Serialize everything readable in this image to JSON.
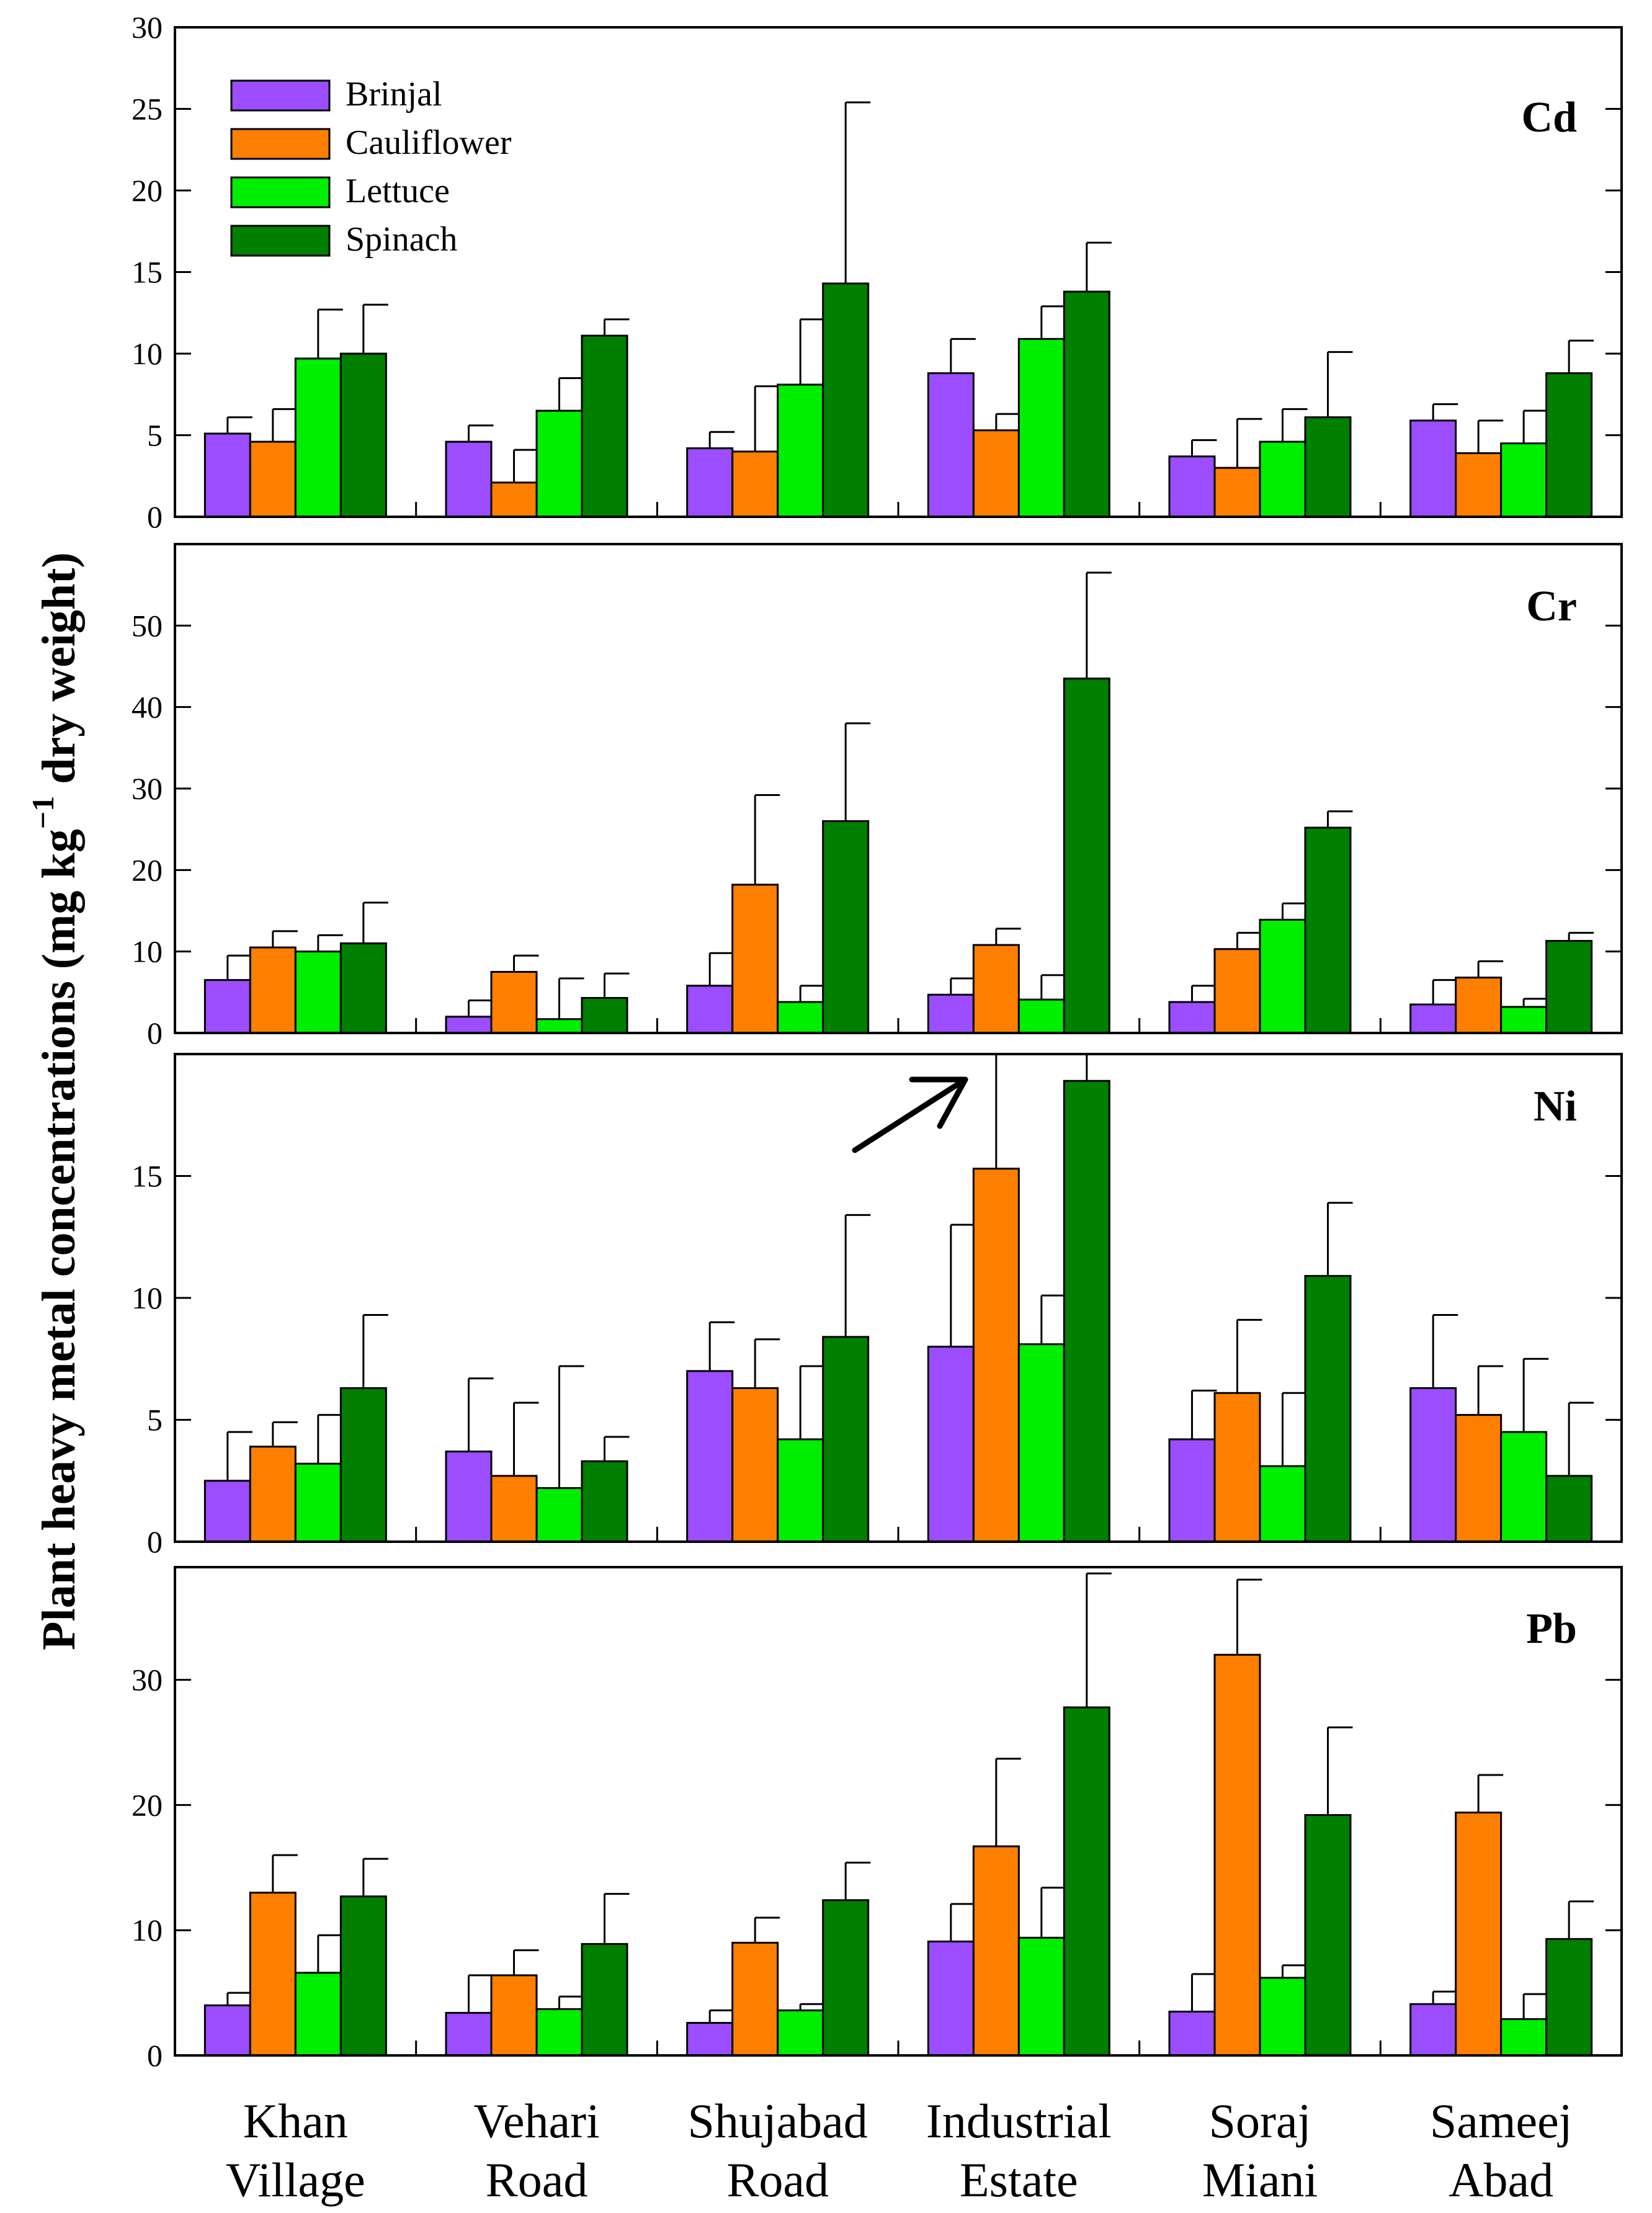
{
  "chart_data": {
    "type": "bar",
    "ylabel_parts": [
      "Plant heavy metal concentrations (mg kg",
      "−1",
      " dry weight)"
    ],
    "categories": [
      [
        "Khan",
        "Village"
      ],
      [
        "Vehari",
        "Road"
      ],
      [
        "Shujabad",
        "Road"
      ],
      [
        "Industrial",
        "Estate"
      ],
      [
        "Soraj",
        "Miani"
      ],
      [
        "Sameej",
        "Abad"
      ]
    ],
    "series_names": [
      "Brinjal",
      "Cauliflower",
      "Lettuce",
      "Spinach"
    ],
    "colors": [
      "#9b4dff",
      "#ff7f00",
      "#00ee00",
      "#007f00"
    ],
    "legend_position": "top-left",
    "annotation": "arrow pointing to truncated error bars in Ni panel (Industrial Estate)",
    "panels": [
      {
        "name": "Cd",
        "ylim": [
          0,
          30
        ],
        "yticks": [
          0,
          5,
          10,
          15,
          20,
          25,
          30
        ],
        "values": [
          [
            5.1,
            4.6,
            9.7,
            10.0
          ],
          [
            4.6,
            2.1,
            6.5,
            11.1
          ],
          [
            4.2,
            4.0,
            8.1,
            14.3
          ],
          [
            8.8,
            5.3,
            10.9,
            13.8
          ],
          [
            3.7,
            3.0,
            4.6,
            6.1
          ],
          [
            5.9,
            3.9,
            4.5,
            8.8
          ]
        ],
        "errors": [
          [
            1.0,
            2.0,
            3.0,
            3.0
          ],
          [
            1.0,
            2.0,
            2.0,
            1.0
          ],
          [
            1.0,
            4.0,
            4.0,
            11.1
          ],
          [
            2.1,
            1.0,
            2.0,
            3.0
          ],
          [
            1.0,
            3.0,
            2.0,
            4.0
          ],
          [
            1.0,
            2.0,
            2.0,
            2.0
          ]
        ]
      },
      {
        "name": "Cr",
        "ylim": [
          0,
          60
        ],
        "yticks": [
          0,
          10,
          20,
          30,
          40,
          50
        ],
        "values": [
          [
            6.5,
            10.5,
            10.0,
            11.0
          ],
          [
            2.0,
            7.5,
            1.7,
            4.3
          ],
          [
            5.8,
            18.2,
            3.8,
            26.0
          ],
          [
            4.7,
            10.8,
            4.1,
            43.5
          ],
          [
            3.8,
            10.3,
            13.9,
            25.2
          ],
          [
            3.5,
            6.8,
            3.2,
            11.3
          ]
        ],
        "errors": [
          [
            3.0,
            2.0,
            2.0,
            5.0
          ],
          [
            2.0,
            2.0,
            5.0,
            3.0
          ],
          [
            4.0,
            11.0,
            2.0,
            12.0
          ],
          [
            2.0,
            2.0,
            3.0,
            13.0
          ],
          [
            2.0,
            2.0,
            2.0,
            2.0
          ],
          [
            3.0,
            2.0,
            1.0,
            1.0
          ]
        ]
      },
      {
        "name": "Ni",
        "ylim": [
          0,
          20
        ],
        "yticks": [
          0,
          5,
          10,
          15
        ],
        "values": [
          [
            2.5,
            3.9,
            3.2,
            6.3
          ],
          [
            3.7,
            2.7,
            2.2,
            3.3
          ],
          [
            7.0,
            6.3,
            4.2,
            8.4
          ],
          [
            8.0,
            15.3,
            8.1,
            18.9
          ],
          [
            4.2,
            6.1,
            3.1,
            10.9
          ],
          [
            6.3,
            5.2,
            4.5,
            2.7
          ]
        ],
        "errors": [
          [
            2.0,
            1.0,
            2.0,
            3.0
          ],
          [
            3.0,
            3.0,
            5.0,
            1.0
          ],
          [
            2.0,
            2.0,
            3.0,
            5.0
          ],
          [
            5.0,
            4.7,
            2.0,
            1.1
          ],
          [
            2.0,
            3.0,
            3.0,
            3.0
          ],
          [
            3.0,
            2.0,
            3.0,
            3.0
          ]
        ]
      },
      {
        "name": "Pb",
        "ylim": [
          0,
          39
        ],
        "yticks": [
          0,
          10,
          20,
          30
        ],
        "values": [
          [
            4.0,
            13.0,
            6.6,
            12.7
          ],
          [
            3.4,
            6.4,
            3.7,
            8.9
          ],
          [
            2.6,
            9.0,
            3.6,
            12.4
          ],
          [
            9.1,
            16.7,
            9.4,
            27.8
          ],
          [
            3.5,
            32.0,
            6.2,
            19.2
          ],
          [
            4.1,
            19.4,
            2.9,
            9.3
          ]
        ],
        "errors": [
          [
            1.0,
            3.0,
            3.0,
            3.0
          ],
          [
            3.0,
            2.0,
            1.0,
            4.0
          ],
          [
            1.0,
            2.0,
            0.5,
            3.0
          ],
          [
            3.0,
            7.0,
            4.0,
            10.7
          ],
          [
            3.0,
            6.0,
            1.0,
            7.0
          ],
          [
            1.0,
            3.0,
            2.0,
            3.0
          ]
        ]
      }
    ]
  }
}
